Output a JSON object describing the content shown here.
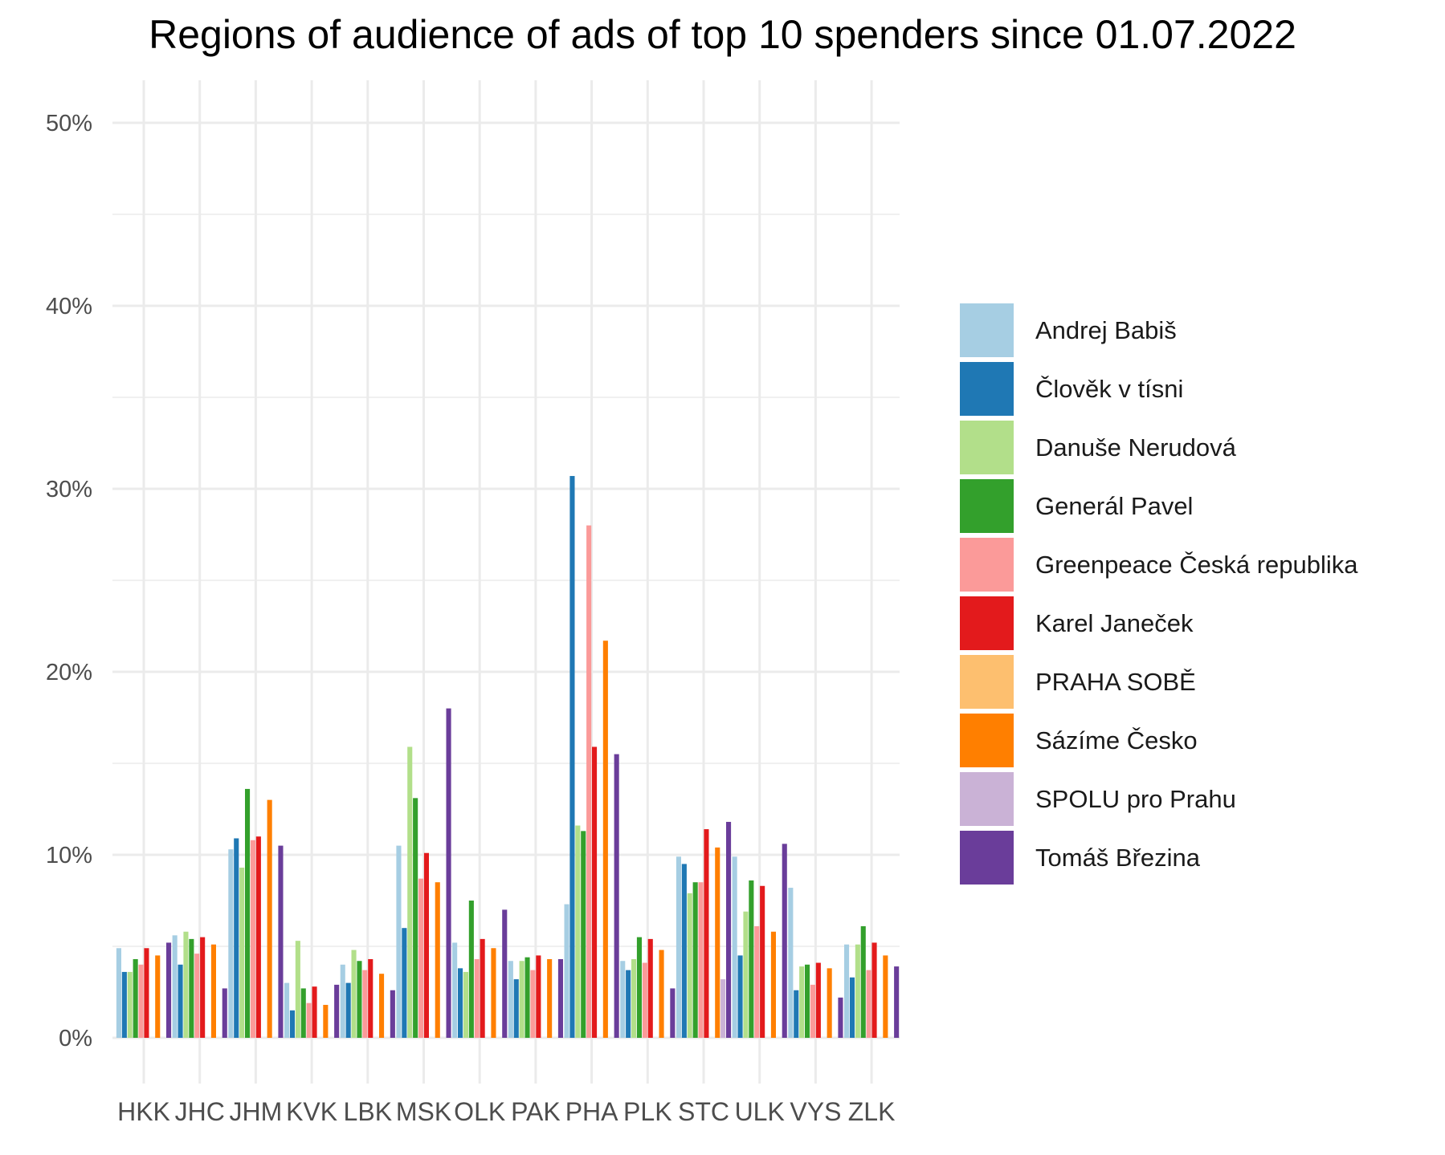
{
  "chart_data": {
    "type": "bar",
    "title": "Regions of audience of ads of top 10 spenders since 01.07.2022",
    "xlabel": "",
    "ylabel": "",
    "ylim": [
      0,
      0.52
    ],
    "y_ticks": [
      0,
      0.1,
      0.2,
      0.3,
      0.4,
      0.5
    ],
    "y_tick_labels": [
      "0%",
      "10%",
      "20%",
      "30%",
      "40%",
      "50%"
    ],
    "grid": true,
    "legend_position": "right",
    "categories": [
      "HKK",
      "JHC",
      "JHM",
      "KVK",
      "LBK",
      "MSK",
      "OLK",
      "PAK",
      "PHA",
      "PLK",
      "STC",
      "ULK",
      "VYS",
      "ZLK"
    ],
    "series": [
      {
        "name": "Andrej Babiš",
        "color": "#a6cee3",
        "values": [
          0.049,
          0.056,
          0.103,
          0.03,
          0.04,
          0.105,
          0.052,
          0.042,
          0.073,
          0.042,
          0.099,
          0.099,
          0.082,
          0.051
        ]
      },
      {
        "name": "Člověk v tísni",
        "color": "#1f78b4",
        "values": [
          0.036,
          0.04,
          0.109,
          0.015,
          0.03,
          0.06,
          0.038,
          0.032,
          0.307,
          0.037,
          0.095,
          0.045,
          0.026,
          0.033
        ]
      },
      {
        "name": "Danuše Nerudová",
        "color": "#b2df8a",
        "values": [
          0.036,
          0.058,
          0.093,
          0.053,
          0.048,
          0.159,
          0.036,
          0.042,
          0.116,
          0.043,
          0.079,
          0.069,
          0.039,
          0.051
        ]
      },
      {
        "name": "Generál Pavel",
        "color": "#33a02c",
        "values": [
          0.043,
          0.054,
          0.136,
          0.027,
          0.042,
          0.131,
          0.075,
          0.044,
          0.113,
          0.055,
          0.085,
          0.086,
          0.04,
          0.061
        ]
      },
      {
        "name": "Greenpeace Česká republika",
        "color": "#fb9a99",
        "values": [
          0.04,
          0.046,
          0.108,
          0.019,
          0.037,
          0.087,
          0.043,
          0.037,
          0.28,
          0.041,
          0.085,
          0.061,
          0.029,
          0.037
        ]
      },
      {
        "name": "Karel Janeček",
        "color": "#e31a1c",
        "values": [
          0.049,
          0.055,
          0.11,
          0.028,
          0.043,
          0.101,
          0.054,
          0.045,
          0.159,
          0.054,
          0.114,
          0.083,
          0.041,
          0.052
        ]
      },
      {
        "name": "PRAHA SOBĚ",
        "color": "#fdbf6f",
        "values": [
          0.0,
          0.0,
          0.0,
          0.0,
          0.0,
          0.0,
          0.0,
          0.0,
          0.0,
          0.0,
          0.0,
          0.0,
          0.0,
          0.0
        ]
      },
      {
        "name": "Sázíme Česko",
        "color": "#ff7f00",
        "values": [
          0.045,
          0.051,
          0.13,
          0.018,
          0.035,
          0.085,
          0.049,
          0.043,
          0.217,
          0.048,
          0.104,
          0.058,
          0.038,
          0.045
        ]
      },
      {
        "name": "SPOLU pro Prahu",
        "color": "#cab2d6",
        "values": [
          0.0,
          0.0,
          0.0,
          0.0,
          0.0,
          0.0,
          0.0,
          0.0,
          0.0,
          0.0,
          0.032,
          0.0,
          0.0,
          0.0
        ]
      },
      {
        "name": "Tomáš Březina",
        "color": "#6a3d9a",
        "values": [
          0.052,
          0.027,
          0.105,
          0.029,
          0.026,
          0.18,
          0.07,
          0.043,
          0.155,
          0.027,
          0.118,
          0.106,
          0.022,
          0.039
        ]
      }
    ]
  }
}
